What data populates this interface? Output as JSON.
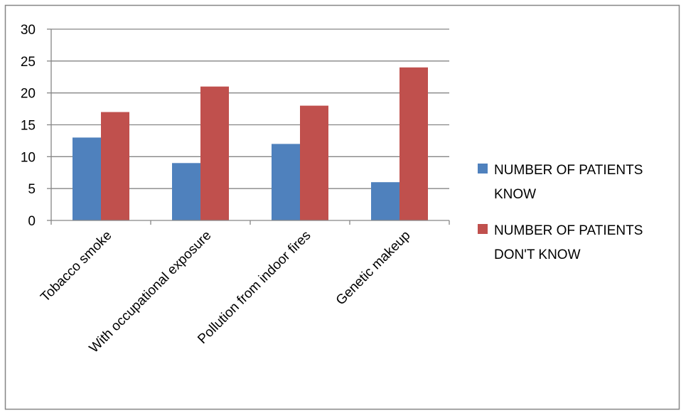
{
  "chart_data": {
    "type": "bar",
    "title": "",
    "xlabel": "",
    "ylabel": "",
    "categories": [
      "Tobacco smoke",
      "With occupational exposure",
      "Pollution from indoor fires",
      "Genetic makeup"
    ],
    "series": [
      {
        "name": "NUMBER OF PATIENTS KNOW",
        "color": "#4f81bd",
        "values": [
          13,
          9,
          12,
          6
        ]
      },
      {
        "name": "NUMBER OF PATIENTS DON'T KNOW",
        "color": "#c0504d",
        "values": [
          17,
          21,
          18,
          24
        ]
      }
    ],
    "ylim": [
      0,
      30
    ],
    "yticks": [
      "0",
      "5",
      "10",
      "15",
      "20",
      "25",
      "30"
    ],
    "grid": true,
    "legend_position": "right",
    "legend": [
      {
        "lines": [
          "NUMBER OF PATIENTS",
          "KNOW"
        ]
      },
      {
        "lines": [
          "NUMBER OF PATIENTS",
          "DON'T KNOW"
        ]
      }
    ]
  },
  "colors": {
    "gridline": "#868686",
    "axis": "#868686",
    "border": "#868686"
  }
}
